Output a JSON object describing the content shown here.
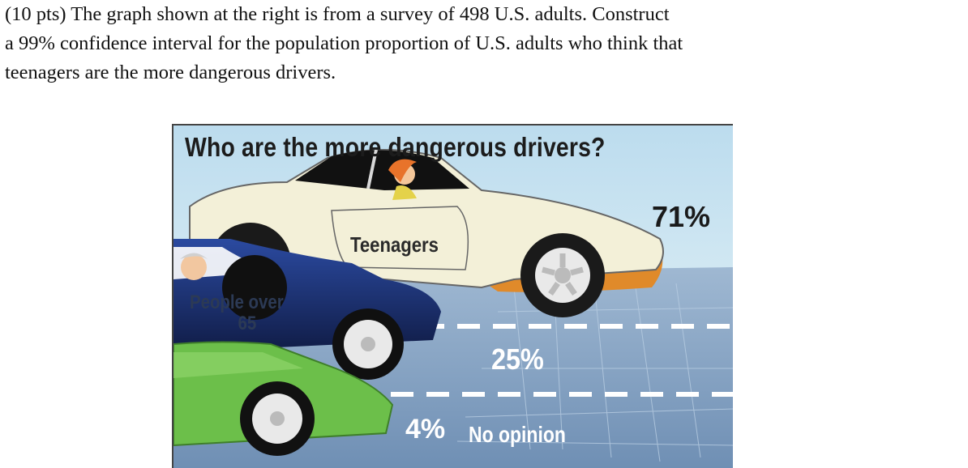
{
  "question": {
    "line1": "(10 pts) The graph shown at the right is from a survey of 498 U.S. adults. Construct",
    "line2": "a 99% confidence interval for the population proportion of U.S. adults who think that",
    "line3": "teenagers are the more dangerous drivers."
  },
  "figure": {
    "title": "Who are the more dangerous drivers?",
    "teen_label": "Teenagers",
    "teen_pct": "71%",
    "older_label_line1": "People over",
    "older_label_line2": "65",
    "older_pct": "25%",
    "noop_pct": "4%",
    "noop_label": "No opinion"
  },
  "colors": {
    "sky": "#c8e2f0",
    "road": "#7f9fc0",
    "teen_car": "#f2efd6",
    "older_car": "#1d2f66",
    "noop_car": "#6cbf4a",
    "accent_orange": "#e58a2a"
  }
}
